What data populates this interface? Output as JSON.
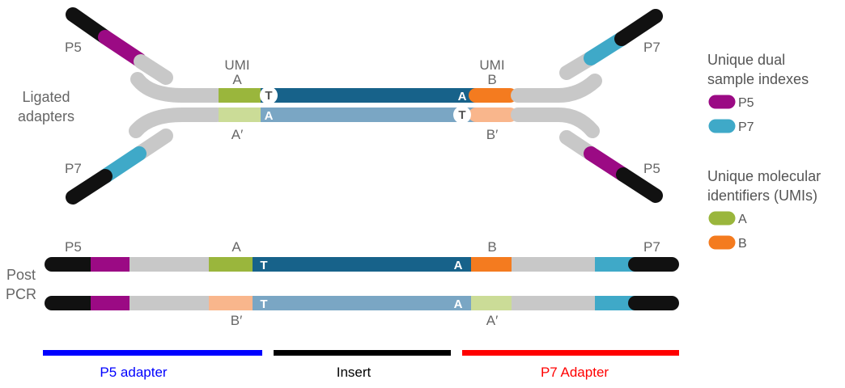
{
  "colors": {
    "black": "#111111",
    "grey": "#c8c8c8",
    "purple": "#9b0a84",
    "cyan": "#3fa9c8",
    "umi_a": "#9ab63c",
    "umi_a_light": "#cbdc97",
    "umi_b": "#f47b1f",
    "umi_b_light": "#f9b68c",
    "insert_dark": "#17628a",
    "insert_light": "#7aa6c4",
    "p5_bar": "#0000ff",
    "insert_bar": "#000000",
    "p7_bar": "#ff0000"
  },
  "ligated": {
    "section_label_line1": "Ligated",
    "section_label_line2": "adapters",
    "p5_top": "P5",
    "p7_top": "P7",
    "p7_bottom_left": "P7",
    "p5_bottom_right": "P5",
    "umi_left_title": "UMI",
    "umi_left_letter": "A",
    "umi_right_title": "UMI",
    "umi_right_letter": "B",
    "umi_left_bottom": "A′",
    "umi_right_bottom": "B′",
    "top_T": "T",
    "top_A": "A",
    "bottom_A": "A",
    "bottom_T": "T"
  },
  "post_pcr": {
    "section_label_line1": "Post",
    "section_label_line2": "PCR",
    "p5": "P5",
    "p7": "P7",
    "top_umi_left": "A",
    "top_umi_right": "B",
    "bottom_umi_left": "B′",
    "bottom_umi_right": "A′",
    "strand1_T": "T",
    "strand1_A": "A",
    "strand2_T": "T",
    "strand2_A": "A"
  },
  "legend": {
    "indexes_title_line1": "Unique dual",
    "indexes_title_line2": "sample indexes",
    "index_p5": "P5",
    "index_p7": "P7",
    "umi_title_line1": "Unique molecular",
    "umi_title_line2": "identifiers (UMIs)",
    "umi_a": "A",
    "umi_b": "B"
  },
  "bottom_labels": {
    "p5_adapter": "P5 adapter",
    "insert": "Insert",
    "p7_adapter": "P7 Adapter"
  }
}
